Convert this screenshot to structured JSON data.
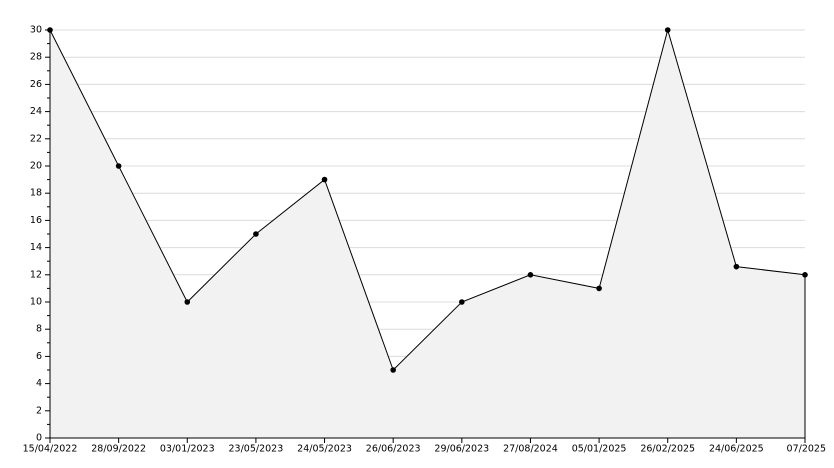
{
  "chart_data": {
    "type": "area",
    "categories": [
      "15/04/2022",
      "28/09/2022",
      "03/01/2023",
      "23/05/2023",
      "24/05/2023",
      "26/06/2023",
      "29/06/2023",
      "27/08/2024",
      "05/01/2025",
      "26/02/2025",
      "24/06/2025",
      "07/2025"
    ],
    "values": [
      30,
      20,
      10,
      15,
      19,
      5,
      10,
      12,
      11,
      30,
      12.6,
      12
    ],
    "color": "#000000",
    "fill_color": "#f2f2f2",
    "ylim": [
      0,
      30
    ],
    "yticks": [
      0,
      2,
      4,
      6,
      8,
      10,
      12,
      14,
      16,
      18,
      20,
      22,
      24,
      26,
      28,
      30
    ],
    "grid": true
  }
}
